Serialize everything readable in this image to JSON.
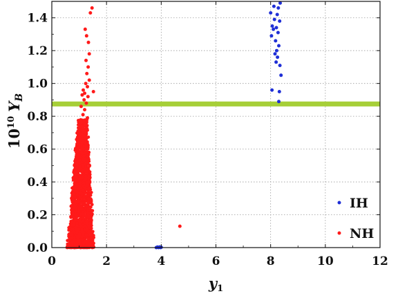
{
  "chart_data": {
    "type": "scatter",
    "xlabel_main": "y",
    "xlabel_sub": "1",
    "ylabel_prefix": "10",
    "ylabel_exp": "10",
    "ylabel_var": "Y",
    "ylabel_sub": "B",
    "xlim": [
      0,
      12
    ],
    "ylim": [
      0,
      1.5
    ],
    "x_ticks": [
      0,
      2,
      4,
      6,
      8,
      10,
      12
    ],
    "x_tick_labels": [
      "0",
      "2",
      "4",
      "6",
      "8",
      "10",
      "12"
    ],
    "y_ticks": [
      0.0,
      0.2,
      0.4,
      0.6,
      0.8,
      1.0,
      1.2,
      1.4
    ],
    "y_tick_labels": [
      "0.0",
      "0.2",
      "0.4",
      "0.6",
      "0.8",
      "1.0",
      "1.2",
      "1.4"
    ],
    "grid": true,
    "band": {
      "y_low": 0.86,
      "y_high": 0.89,
      "color": "#a6cf38"
    },
    "legend": {
      "placement": "bottom-right"
    },
    "series": [
      {
        "name": "IH",
        "color": "#1f2fd6",
        "points": [
          [
            8.35,
            1.49
          ],
          [
            8.12,
            1.47
          ],
          [
            8.28,
            1.46
          ],
          [
            8.0,
            1.43
          ],
          [
            8.24,
            1.42
          ],
          [
            8.14,
            1.39
          ],
          [
            8.33,
            1.38
          ],
          [
            8.06,
            1.35
          ],
          [
            8.21,
            1.34
          ],
          [
            8.1,
            1.33
          ],
          [
            8.27,
            1.31
          ],
          [
            8.03,
            1.29
          ],
          [
            8.18,
            1.26
          ],
          [
            8.3,
            1.23
          ],
          [
            8.22,
            1.2
          ],
          [
            8.16,
            1.18
          ],
          [
            8.25,
            1.16
          ],
          [
            8.2,
            1.13
          ],
          [
            8.34,
            1.11
          ],
          [
            8.38,
            1.05
          ],
          [
            8.05,
            0.96
          ],
          [
            8.32,
            0.95
          ],
          [
            8.3,
            0.89
          ],
          [
            3.82,
            0.0
          ],
          [
            3.86,
            0.003
          ],
          [
            3.9,
            0.0
          ],
          [
            3.94,
            0.004
          ],
          [
            3.98,
            0.0
          ],
          [
            4.0,
            0.002
          ]
        ]
      },
      {
        "name": "NH",
        "color": "#ff1a1a",
        "points": [
          [
            1.47,
            1.46
          ],
          [
            1.41,
            1.43
          ],
          [
            1.22,
            1.33
          ],
          [
            1.27,
            1.29
          ],
          [
            1.34,
            1.25
          ],
          [
            1.37,
            1.18
          ],
          [
            1.25,
            1.14
          ],
          [
            1.33,
            1.1
          ],
          [
            1.28,
            1.06
          ],
          [
            1.37,
            1.02
          ],
          [
            1.24,
            1.0
          ],
          [
            1.3,
            0.98
          ],
          [
            1.15,
            0.96
          ],
          [
            1.52,
            0.95
          ],
          [
            1.2,
            0.94
          ],
          [
            1.11,
            0.93
          ],
          [
            1.32,
            0.92
          ],
          [
            1.18,
            0.9
          ],
          [
            1.26,
            0.88
          ],
          [
            1.07,
            0.86
          ],
          [
            1.2,
            0.84
          ],
          [
            1.14,
            0.81
          ],
          [
            1.3,
            0.79
          ],
          [
            1.05,
            0.77
          ],
          [
            1.22,
            0.75
          ],
          [
            4.68,
            0.13
          ]
        ],
        "cloud": {
          "x_min": 0.5,
          "x_max": 1.55,
          "y_min": 0.0,
          "y_max": 0.78
        }
      }
    ]
  }
}
